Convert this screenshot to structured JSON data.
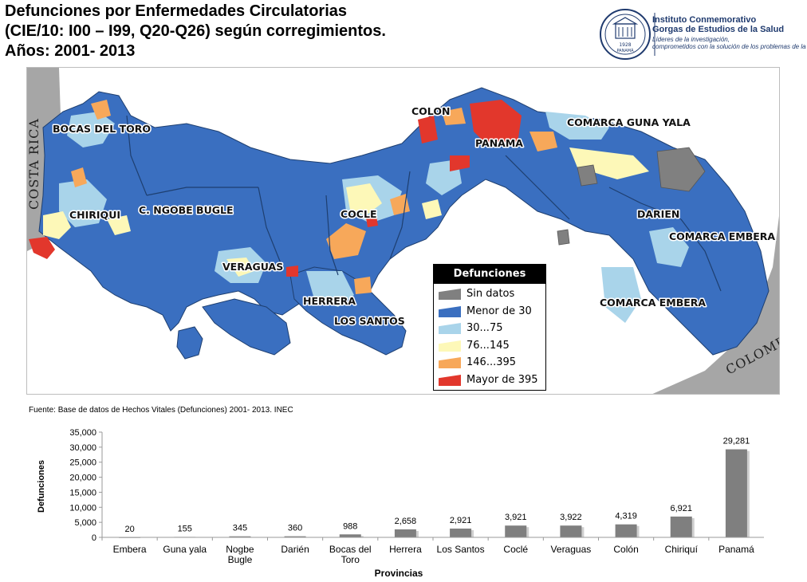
{
  "header": {
    "title_lines": [
      "Defunciones por Enfermedades Circulatorias",
      "(CIE/10: I00 – I99, Q20-Q26) según corregimientos.",
      "Años: 2001- 2013"
    ],
    "logo_name_lines": [
      "Instituto Conmemorativo",
      "Gorgas de Estudios de la Salud"
    ],
    "logo_tagline_lines": [
      "Líderes de la investigación,",
      "comprometidos con la solución de los problemas de la salud"
    ],
    "seal_year": "1928",
    "seal_place": "PANAMÁ"
  },
  "map": {
    "country_labels": [
      "COSTA RICA",
      "COLOMBIA"
    ],
    "province_labels": [
      "BOCAS DEL TORO",
      "COLON",
      "PANAMA",
      "COMARCA GUNA YALA",
      "CHIRIQUI",
      "C. NGOBE BUGLE",
      "COCLE",
      "DARIEN",
      "COMARCA EMBERA",
      "VERAGUAS",
      "HERRERA",
      "LOS SANTOS",
      "COMARCA EMBERA"
    ],
    "legend": {
      "title": "Defunciones",
      "items": [
        {
          "label": "Sin datos",
          "color": "#808080"
        },
        {
          "label": "Menor de 30",
          "color": "#3a6fc0"
        },
        {
          "label": "30...75",
          "color": "#a9d4ea"
        },
        {
          "label": "76...145",
          "color": "#fdf8b8"
        },
        {
          "label": "146...395",
          "color": "#f7a85a"
        },
        {
          "label": "Mayor de 395",
          "color": "#e2372c"
        }
      ]
    }
  },
  "source": "Fuente: Base de datos de Hechos Vitales (Defunciones) 2001- 2013. INEC",
  "chart_data": {
    "type": "bar",
    "categories": [
      "Embera",
      "Guna yala",
      "Nogbe Bugle",
      "Darién",
      "Bocas del Toro",
      "Herrera",
      "Los Santos",
      "Coclé",
      "Veraguas",
      "Colón",
      "Chiriquí",
      "Panamá"
    ],
    "category_lines": [
      [
        "Embera"
      ],
      [
        "Guna yala"
      ],
      [
        "Nogbe",
        "Bugle"
      ],
      [
        "Darién"
      ],
      [
        "Bocas del",
        "Toro"
      ],
      [
        "Herrera"
      ],
      [
        "Los Santos"
      ],
      [
        "Coclé"
      ],
      [
        "Veraguas"
      ],
      [
        "Colón"
      ],
      [
        "Chiriquí"
      ],
      [
        "Panamá"
      ]
    ],
    "values": [
      20,
      155,
      345,
      360,
      988,
      2658,
      2921,
      3921,
      3922,
      4319,
      6921,
      29281
    ],
    "value_labels": [
      "20",
      "155",
      "345",
      "360",
      "988",
      "2,658",
      "2,921",
      "3,921",
      "3,922",
      "4,319",
      "6,921",
      "29,281"
    ],
    "ylim": [
      0,
      35000
    ],
    "yticks": [
      0,
      5000,
      10000,
      15000,
      20000,
      25000,
      30000,
      35000
    ],
    "ytick_labels": [
      "0",
      "5,000",
      "10,000",
      "15,000",
      "20,000",
      "25,000",
      "30,000",
      "35,000"
    ],
    "xlabel": "Provincias",
    "ylabel": "Defunciones",
    "bar_color": "#7f7f7f",
    "grid": false
  }
}
